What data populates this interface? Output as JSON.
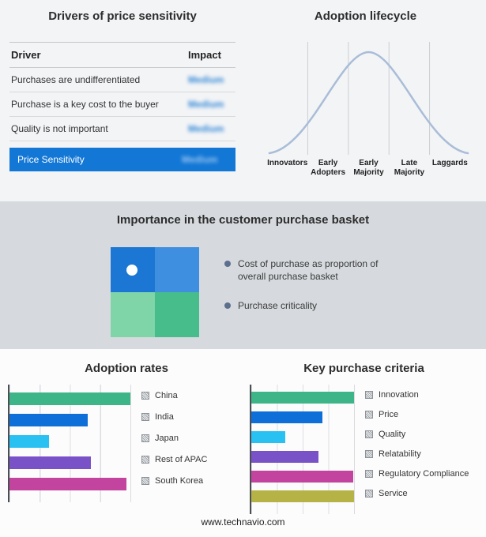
{
  "footer": "www.technavio.com",
  "colors": {
    "highlight_blue": "#1377d6",
    "badge_blue": "#2f86d6",
    "curve": "#a9bdd8",
    "gridline": "#c9ccd1",
    "bullet_gray_blue": "#5d6f8e"
  },
  "drivers": {
    "title": "Drivers of price sensitivity",
    "columns": {
      "driver": "Driver",
      "impact": "Impact"
    },
    "rows": [
      {
        "driver": "Purchases are undifferentiated",
        "impact": "Medium"
      },
      {
        "driver": "Purchase is a key cost to the buyer",
        "impact": "Medium"
      },
      {
        "driver": "Quality is not important",
        "impact": "Medium"
      }
    ],
    "highlight": {
      "driver": "Price Sensitivity",
      "impact": "Medium"
    }
  },
  "basket": {
    "title": "Importance in the customer purchase basket",
    "legend": [
      "Cost of purchase as proportion of overall purchase basket",
      "Purchase criticality"
    ],
    "quadrants": [
      "#1b76d4",
      "#3e8fe0",
      "#7fd4a8",
      "#46bd8b"
    ]
  },
  "chart_data": [
    {
      "id": "adoption-lifecycle",
      "type": "line",
      "title": "Adoption lifecycle",
      "categories": [
        "Innovators",
        "Early Adopters",
        "Early Majority",
        "Late Majority",
        "Laggards"
      ],
      "description": "Bell-shaped adoption curve across five lifecycle stages, peaking at Early Majority; vertical gridlines separate the stages; no numeric axes shown",
      "curve_color": "#a9bdd8",
      "grid": true,
      "legend_position": "none"
    },
    {
      "id": "adoption-rates",
      "type": "bar",
      "orientation": "horizontal",
      "title": "Adoption rates",
      "categories": [
        "China",
        "India",
        "Japan",
        "Rest of APAC",
        "South Korea"
      ],
      "values": [
        100,
        65,
        33,
        67,
        97
      ],
      "value_unit": "percent of axis maximum (axis unlabeled)",
      "colors": [
        "#3eb489",
        "#0f6fd8",
        "#29c0f2",
        "#7a52c7",
        "#c2449f"
      ],
      "xlim": [
        0,
        100
      ],
      "grid": true,
      "legend_position": "right"
    },
    {
      "id": "key-purchase-criteria",
      "type": "bar",
      "orientation": "horizontal",
      "title": "Key purchase criteria",
      "categories": [
        "Innovation",
        "Price",
        "Quality",
        "Relatability",
        "Regulatory Compliance",
        "Service"
      ],
      "values": [
        100,
        69,
        33,
        65,
        99,
        100
      ],
      "value_unit": "percent of axis maximum (axis unlabeled)",
      "colors": [
        "#3eb489",
        "#0f6fd8",
        "#29c0f2",
        "#7a52c7",
        "#c2449f",
        "#b5b246"
      ],
      "xlim": [
        0,
        100
      ],
      "grid": true,
      "legend_position": "right"
    }
  ]
}
